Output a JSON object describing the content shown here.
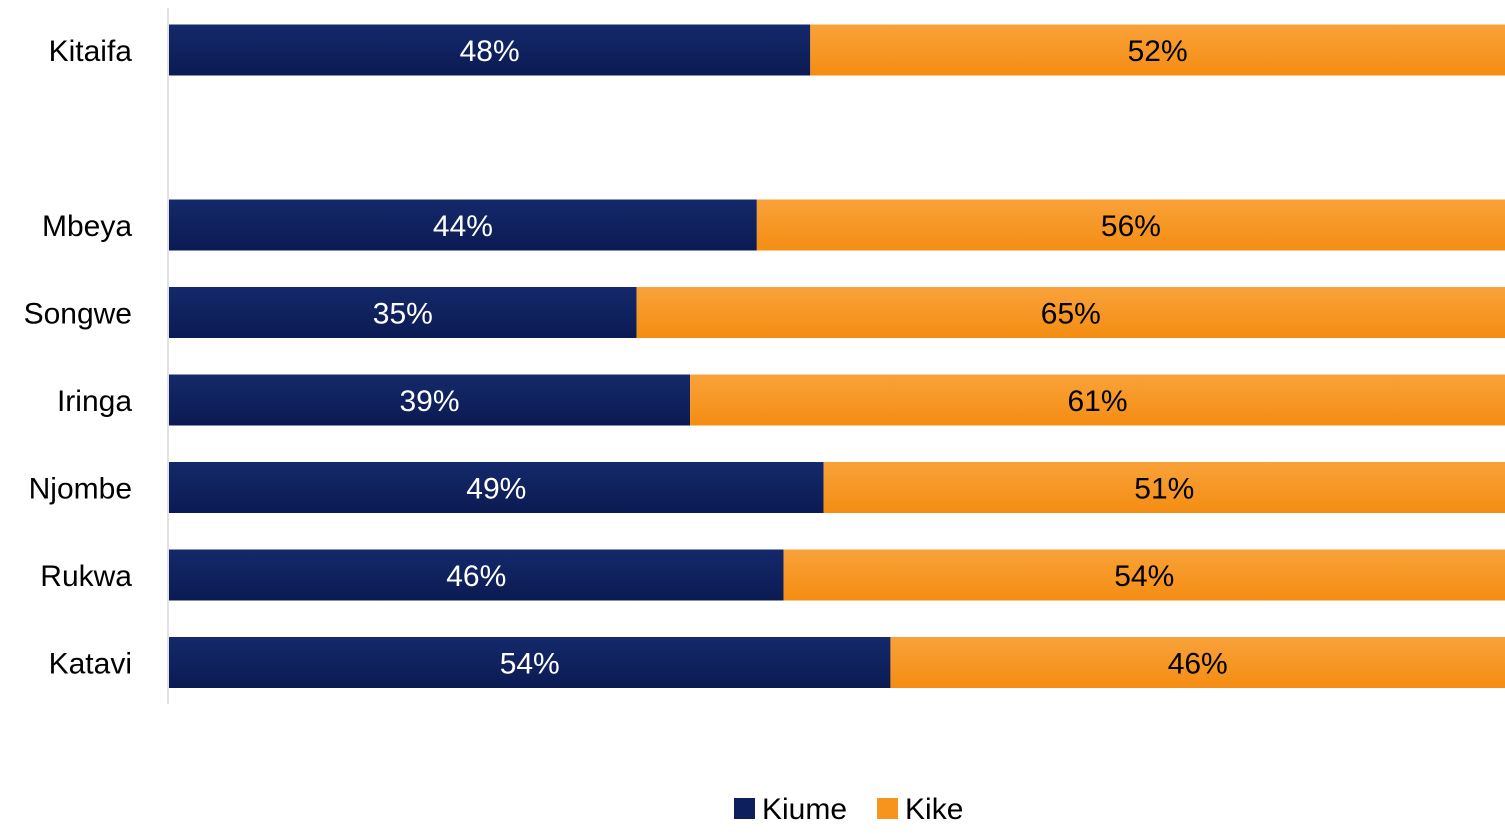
{
  "chart_data": {
    "type": "bar",
    "orientation": "horizontal",
    "stacked": true,
    "percent_stacked": true,
    "title": "",
    "xlabel": "",
    "ylabel": "",
    "xlim": [
      0,
      100
    ],
    "grid": false,
    "legend_position": "bottom",
    "categories": [
      "Kitaifa",
      "",
      "Mbeya",
      "Songwe",
      "Iringa",
      "Njombe",
      "Rukwa",
      "Katavi"
    ],
    "series": [
      {
        "name": "Kiume",
        "color": "#0D1F5C",
        "values": [
          48,
          null,
          44,
          35,
          39,
          49,
          46,
          54
        ],
        "labels": [
          "48%",
          "",
          "44%",
          "35%",
          "39%",
          "49%",
          "46%",
          "54%"
        ],
        "label_color": "#ffffff"
      },
      {
        "name": "Kike",
        "color": "#F7941D",
        "values": [
          52,
          null,
          56,
          65,
          61,
          51,
          54,
          46
        ],
        "labels": [
          "52%",
          "",
          "56%",
          "65%",
          "61%",
          "51%",
          "54%",
          "46%"
        ],
        "label_color": "#000000"
      }
    ]
  }
}
